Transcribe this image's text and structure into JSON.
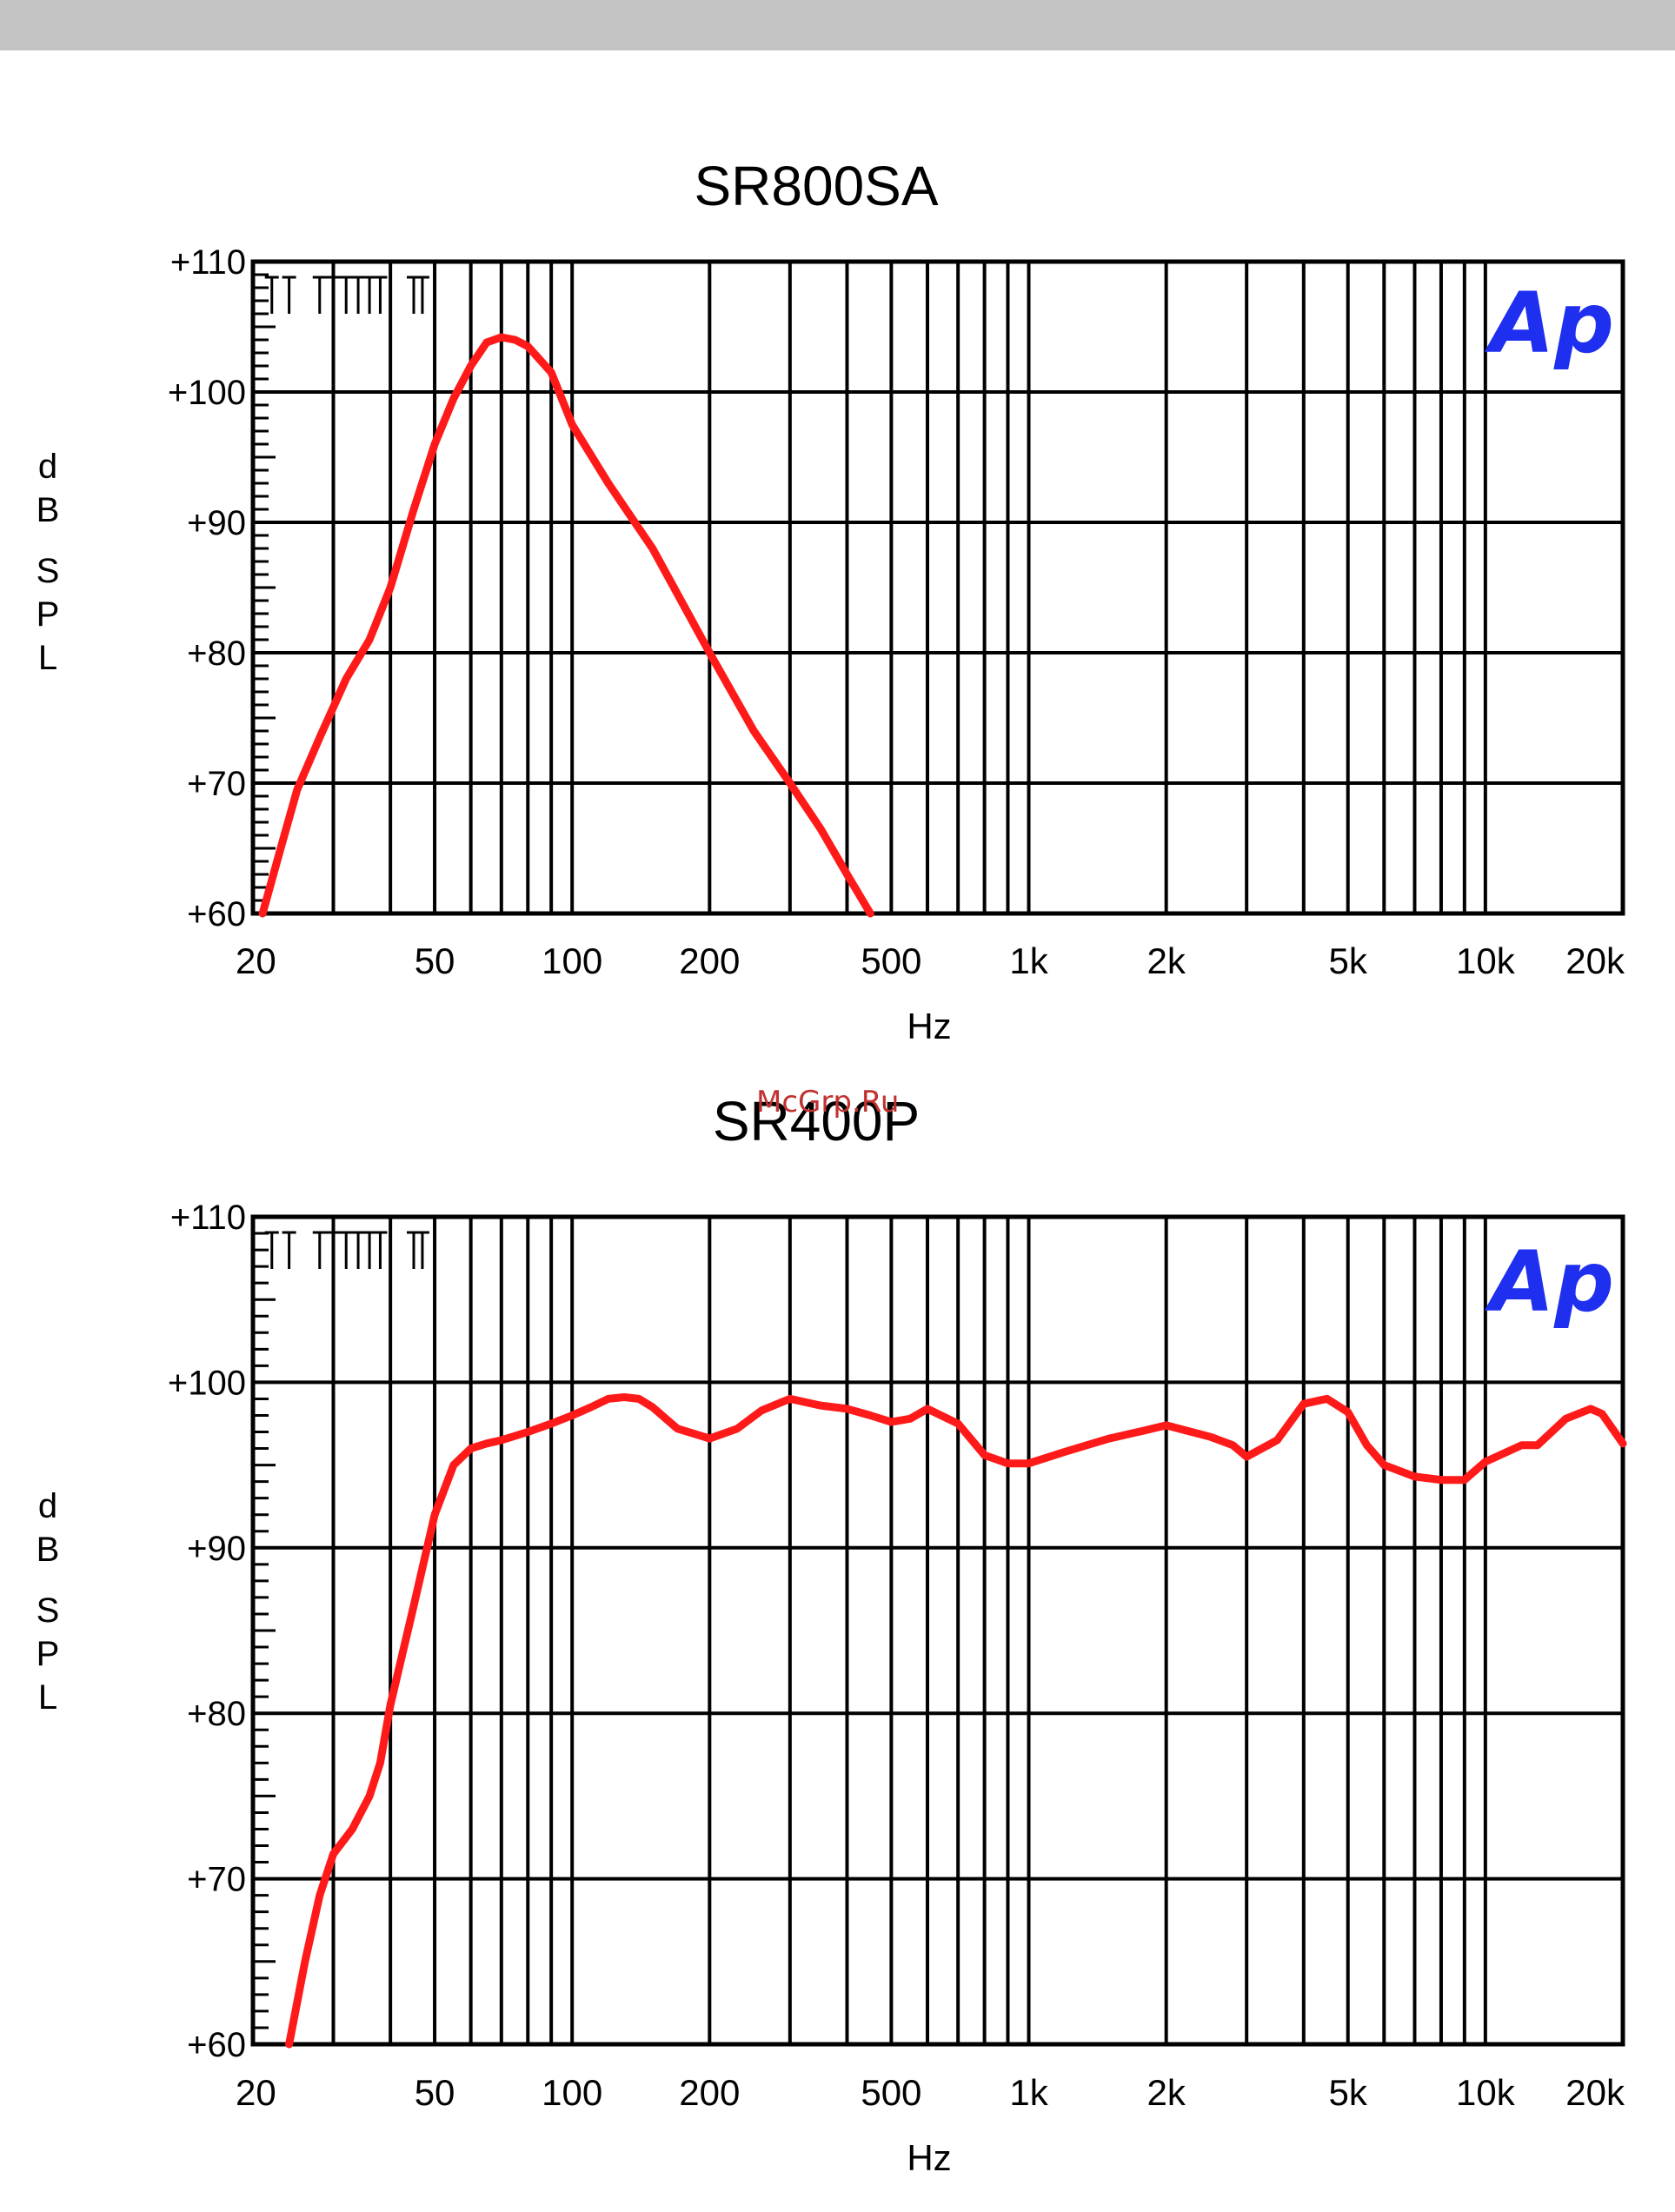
{
  "watermark": "McGrp.Ru",
  "logo_text": "Ap",
  "colors": {
    "curve": "#ff1a1a",
    "grid": "#000000",
    "logo": "#1f2ff0",
    "top_band": "#c3c3c3"
  },
  "chart_data": [
    {
      "type": "line",
      "title": "SR800SA",
      "xlabel": "Hz",
      "ylabel": [
        "d",
        "B",
        "S",
        "P",
        "L"
      ],
      "x_scale": "log",
      "xlim": [
        20,
        20000
      ],
      "ylim": [
        60,
        110
      ],
      "x_ticks": [
        {
          "value": 20,
          "label": "20"
        },
        {
          "value": 50,
          "label": "50"
        },
        {
          "value": 100,
          "label": "100"
        },
        {
          "value": 200,
          "label": "200"
        },
        {
          "value": 500,
          "label": "500"
        },
        {
          "value": 1000,
          "label": "1k"
        },
        {
          "value": 2000,
          "label": "2k"
        },
        {
          "value": 5000,
          "label": "5k"
        },
        {
          "value": 10000,
          "label": "10k"
        },
        {
          "value": 20000,
          "label": "20k"
        }
      ],
      "y_ticks": [
        {
          "value": 110,
          "label": "+110"
        },
        {
          "value": 100,
          "label": "+100"
        },
        {
          "value": 90,
          "label": "+90"
        },
        {
          "value": 80,
          "label": "+80"
        },
        {
          "value": 70,
          "label": "+70"
        },
        {
          "value": 60,
          "label": "+60"
        }
      ],
      "grid": true,
      "series": [
        {
          "x": [
            21,
            23,
            25,
            28,
            32,
            36,
            40,
            45,
            50,
            55,
            60,
            65,
            70,
            75,
            80,
            90,
            100,
            120,
            150,
            200,
            250,
            300,
            350,
            400,
            450
          ],
          "y": [
            60,
            65,
            69.5,
            73.5,
            78,
            81,
            85,
            91,
            96,
            99.5,
            102,
            103.8,
            104.2,
            104,
            103.5,
            101.5,
            97.5,
            93,
            88,
            80,
            74,
            70,
            66.5,
            63,
            60
          ]
        }
      ]
    },
    {
      "type": "line",
      "title": "SR400P",
      "xlabel": "Hz",
      "ylabel": [
        "d",
        "B",
        "S",
        "P",
        "L"
      ],
      "x_scale": "log",
      "xlim": [
        20,
        20000
      ],
      "ylim": [
        60,
        110
      ],
      "x_ticks": [
        {
          "value": 20,
          "label": "20"
        },
        {
          "value": 50,
          "label": "50"
        },
        {
          "value": 100,
          "label": "100"
        },
        {
          "value": 200,
          "label": "200"
        },
        {
          "value": 500,
          "label": "500"
        },
        {
          "value": 1000,
          "label": "1k"
        },
        {
          "value": 2000,
          "label": "2k"
        },
        {
          "value": 5000,
          "label": "5k"
        },
        {
          "value": 10000,
          "label": "10k"
        },
        {
          "value": 20000,
          "label": "20k"
        }
      ],
      "y_ticks": [
        {
          "value": 110,
          "label": "+110"
        },
        {
          "value": 100,
          "label": "+100"
        },
        {
          "value": 90,
          "label": "+90"
        },
        {
          "value": 80,
          "label": "+80"
        },
        {
          "value": 70,
          "label": "+70"
        },
        {
          "value": 60,
          "label": "+60"
        }
      ],
      "grid": true,
      "series": [
        {
          "x": [
            24,
            26,
            28,
            30,
            33,
            36,
            38,
            40,
            45,
            50,
            55,
            60,
            65,
            70,
            80,
            90,
            100,
            110,
            120,
            130,
            140,
            150,
            170,
            200,
            230,
            260,
            300,
            350,
            400,
            450,
            500,
            550,
            600,
            700,
            800,
            900,
            1000,
            1200,
            1500,
            1800,
            2000,
            2500,
            2800,
            3000,
            3500,
            4000,
            4500,
            5000,
            5500,
            6000,
            7000,
            8000,
            9000,
            10000,
            12000,
            13000,
            15000,
            17000,
            18000,
            20000
          ],
          "y": [
            60,
            65,
            69,
            71.5,
            73,
            75,
            77,
            80.5,
            86.5,
            92,
            95,
            96,
            96.3,
            96.5,
            97,
            97.5,
            98,
            98.5,
            99,
            99.1,
            99,
            98.5,
            97.2,
            96.6,
            97.2,
            98.3,
            99,
            98.6,
            98.4,
            98,
            97.6,
            97.8,
            98.4,
            97.5,
            95.6,
            95.1,
            95.1,
            95.8,
            96.6,
            97.1,
            97.4,
            96.7,
            96.2,
            95.5,
            96.5,
            98.7,
            99,
            98.2,
            96.2,
            95,
            94.3,
            94.1,
            94.1,
            95.2,
            96.2,
            96.2,
            97.8,
            98.4,
            98.1,
            96.3
          ]
        }
      ]
    }
  ]
}
